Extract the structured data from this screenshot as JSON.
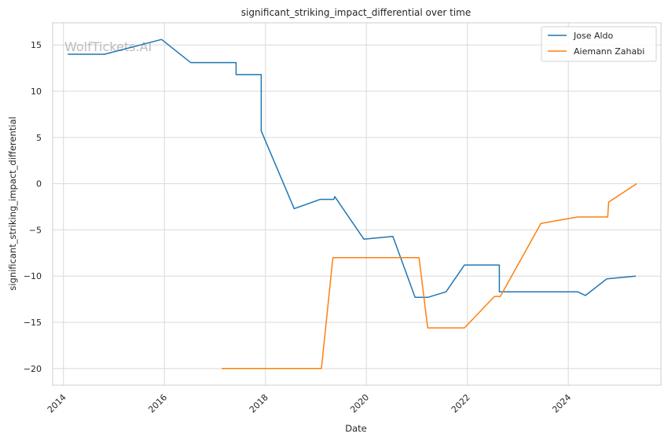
{
  "chart_data": {
    "type": "line",
    "title": "significant_striking_impact_differential over time",
    "xlabel": "Date",
    "ylabel": "significant_striking_impact_differential",
    "watermark": "WolfTickets.AI",
    "x_type": "date",
    "xlim": [
      "2013-10-15",
      "2025-11-01"
    ],
    "ylim": [
      -21.8,
      17.4
    ],
    "x_ticks": [
      "2014-01-01",
      "2016-01-01",
      "2018-01-01",
      "2020-01-01",
      "2022-01-01",
      "2024-01-01"
    ],
    "x_tick_labels": [
      "2014",
      "2016",
      "2018",
      "2020",
      "2022",
      "2024"
    ],
    "y_ticks": [
      -20,
      -15,
      -10,
      -5,
      0,
      5,
      10,
      15
    ],
    "y_tick_labels": [
      "−20",
      "−15",
      "−10",
      "−5",
      "0",
      "5",
      "10",
      "15"
    ],
    "grid": true,
    "legend_position": "top-right",
    "series": [
      {
        "name": "Jose Aldo",
        "color": "#1f77b4",
        "x": [
          "2014-02-01",
          "2014-10-25",
          "2015-12-12",
          "2016-07-09",
          "2017-06-03",
          "2017-06-03",
          "2017-12-02",
          "2017-12-02",
          "2018-07-28",
          "2019-02-02",
          "2019-05-11",
          "2019-05-18",
          "2019-12-14",
          "2020-07-11",
          "2020-12-19",
          "2021-03-20",
          "2021-07-31",
          "2021-12-11",
          "2022-08-20",
          "2022-08-20",
          "2024-03-09",
          "2024-05-04",
          "2024-10-05",
          "2025-05-03"
        ],
        "y": [
          14.0,
          14.0,
          15.6,
          13.1,
          13.1,
          11.8,
          11.8,
          5.7,
          -2.7,
          -1.7,
          -1.7,
          -1.4,
          -6.0,
          -5.7,
          -12.3,
          -12.3,
          -11.7,
          -8.8,
          -8.8,
          -11.7,
          -11.7,
          -12.1,
          -10.3,
          -10.0
        ]
      },
      {
        "name": "Aiemann Zahabi",
        "color": "#ff7f0e",
        "x": [
          "2017-02-19",
          "2019-02-10",
          "2019-05-04",
          "2021-01-16",
          "2021-03-20",
          "2021-12-11",
          "2022-07-16",
          "2022-08-27",
          "2023-06-17",
          "2024-03-09",
          "2024-10-12",
          "2024-10-19",
          "2025-05-10"
        ],
        "y": [
          -20.0,
          -20.0,
          -8.0,
          -8.0,
          -15.6,
          -15.6,
          -12.2,
          -12.2,
          -4.3,
          -3.6,
          -3.6,
          -2.0,
          0.0
        ]
      }
    ]
  }
}
